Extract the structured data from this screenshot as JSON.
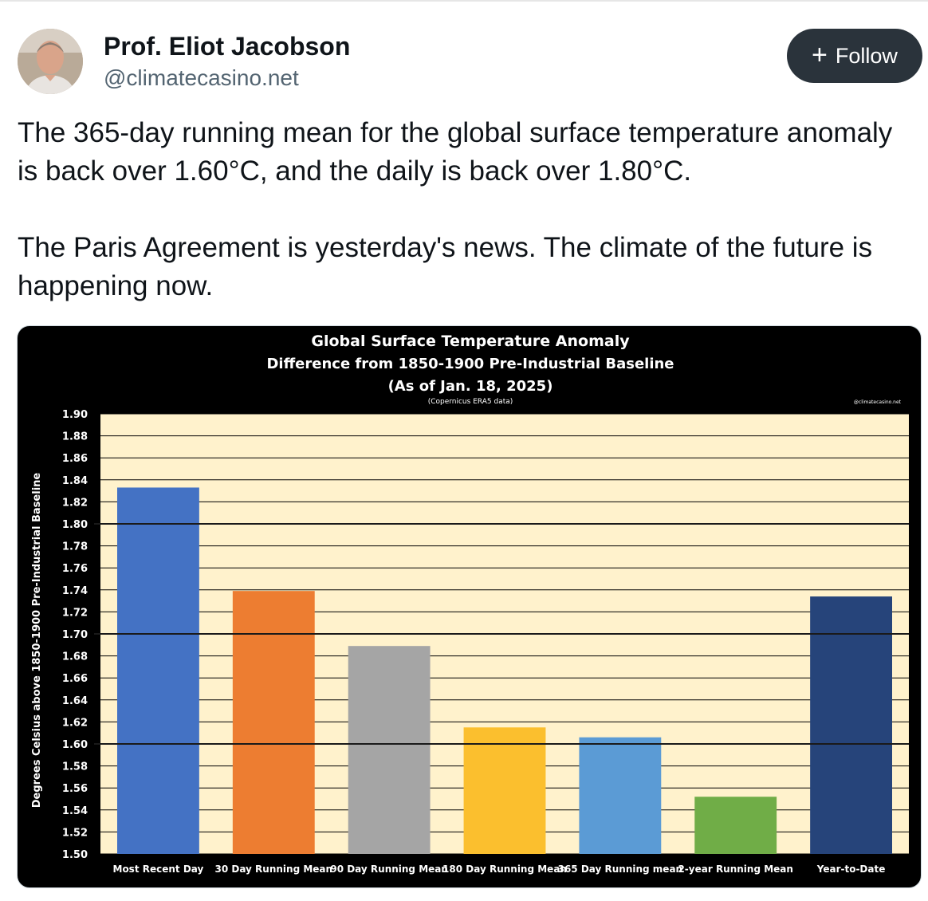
{
  "post": {
    "author_name": "Prof. Eliot Jacobson",
    "author_handle": "@climatecasino.net",
    "follow_label": "Follow",
    "follow_icon": "plus-icon",
    "avatar_icon": "avatar-photo",
    "paragraphs": [
      "The 365-day running mean for the global surface temperature anomaly is back over 1.60°C, and the daily is back over 1.80°C.",
      "The Paris Agreement is yesterday's news. The climate of the future is happening now."
    ]
  },
  "chart_data": {
    "type": "bar",
    "title": "Global Surface Temperature Anomaly",
    "subtitle": "Difference from 1850-1900 Pre-Industrial Baseline",
    "date_line": "(As of Jan. 18, 2025)",
    "source": "(Copernicus ERA5 data)",
    "watermark": "@climatecasino.net",
    "ylabel": "Degrees Celsius above 1850-1900 Pre-Industrial Baseline",
    "xlabel": "",
    "ylim": [
      1.5,
      1.9
    ],
    "ytick_step": 0.02,
    "yticks": [
      "1.90",
      "1.88",
      "1.86",
      "1.84",
      "1.82",
      "1.80",
      "1.78",
      "1.76",
      "1.74",
      "1.72",
      "1.70",
      "1.68",
      "1.66",
      "1.64",
      "1.62",
      "1.60",
      "1.58",
      "1.56",
      "1.54",
      "1.52",
      "1.50"
    ],
    "reference_lines": [
      1.8,
      1.7,
      1.6
    ],
    "categories": [
      "Most Recent Day",
      "30 Day Running Mean",
      "90 Day Running Mean",
      "180 Day Running Mean",
      "365 Day Running mean",
      "2-year Running Mean",
      "Year-to-Date"
    ],
    "values": [
      1.833,
      1.739,
      1.689,
      1.615,
      1.606,
      1.552,
      1.734
    ],
    "colors": [
      "#4472c4",
      "#ed7d31",
      "#a5a5a5",
      "#fbbf2e",
      "#5b9bd5",
      "#70ad47",
      "#26447a"
    ],
    "plot_background": "#fff2cc",
    "grid": true
  }
}
